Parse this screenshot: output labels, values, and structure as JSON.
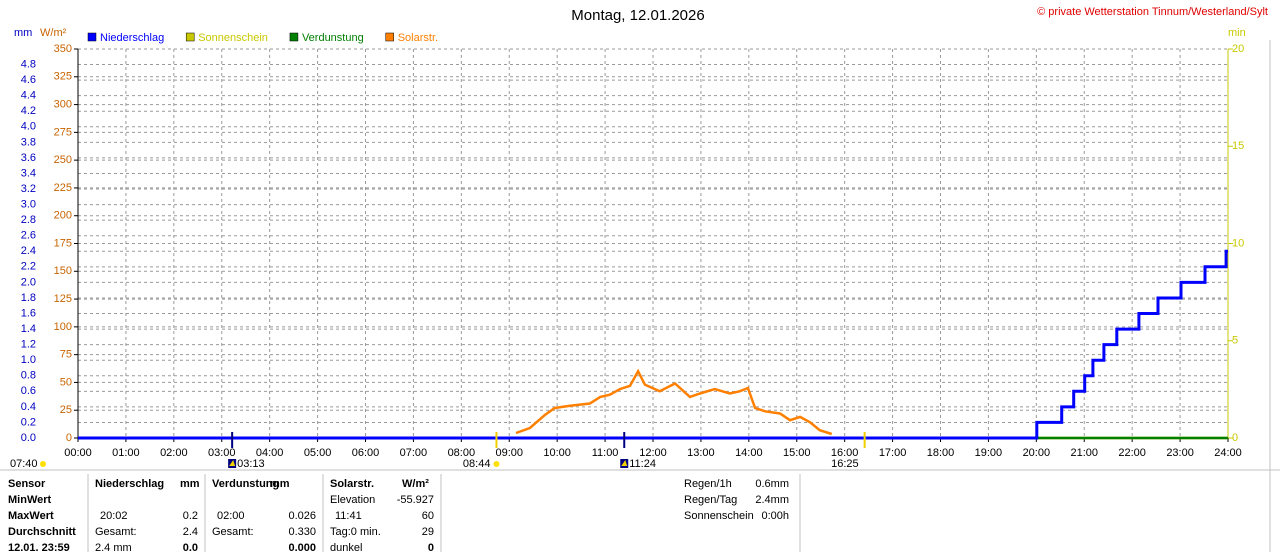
{
  "chart_data": {
    "type": "line",
    "title": "Montag, 12.01.2026",
    "copyright": "© private Wetterstation Tinnum/Westerland/Sylt",
    "ylabel": "W/m²",
    "y3label": "mm",
    "y2label": "min",
    "xlim": [
      0,
      24
    ],
    "xticks": [
      {
        "value": 0,
        "label": "00:00"
      },
      {
        "value": 1,
        "label": "01:00"
      },
      {
        "value": 2,
        "label": "02:00"
      },
      {
        "value": 3,
        "label": "03:00"
      },
      {
        "value": 4,
        "label": "04:00"
      },
      {
        "value": 5,
        "label": "05:00"
      },
      {
        "value": 6,
        "label": "06:00"
      },
      {
        "value": 7,
        "label": "07:00"
      },
      {
        "value": 8,
        "label": "08:00"
      },
      {
        "value": 9,
        "label": "09:00"
      },
      {
        "value": 10,
        "label": "10:00"
      },
      {
        "value": 11,
        "label": "11:00"
      },
      {
        "value": 12,
        "label": "12:00"
      },
      {
        "value": 13,
        "label": "13:00"
      },
      {
        "value": 14,
        "label": "14:00"
      },
      {
        "value": 15,
        "label": "15:00"
      },
      {
        "value": 16,
        "label": "16:00"
      },
      {
        "value": 17,
        "label": "17:00"
      },
      {
        "value": 18,
        "label": "18:00"
      },
      {
        "value": 19,
        "label": "19:00"
      },
      {
        "value": 20,
        "label": "20:00"
      },
      {
        "value": 21,
        "label": "21:00"
      },
      {
        "value": 22,
        "label": "22:00"
      },
      {
        "value": 23,
        "label": "23:00"
      },
      {
        "value": 24,
        "label": "24:00"
      }
    ],
    "ylim": [
      0,
      350
    ],
    "yticks": [
      0,
      25,
      50,
      75,
      100,
      125,
      150,
      175,
      200,
      225,
      250,
      275,
      300,
      325,
      350
    ],
    "y3lim": [
      0,
      5
    ],
    "y3ticks": [
      {
        "value": 0,
        "label": "0.0"
      },
      0.2,
      0.4,
      0.6,
      0.8,
      {
        "value": 1,
        "label": "1.0"
      },
      1.2,
      1.4,
      1.6,
      1.8,
      {
        "value": 2,
        "label": "2.0"
      },
      2.2,
      2.4,
      2.6,
      2.8,
      {
        "value": 3,
        "label": "3.0"
      },
      3.2,
      3.4,
      3.6,
      3.8,
      {
        "value": 4,
        "label": "4.0"
      },
      4.2,
      4.4,
      4.6,
      4.8
    ],
    "y2lim": [
      0,
      20
    ],
    "y2ticks": [
      0,
      5,
      10,
      15,
      20
    ],
    "grid": true,
    "series": [
      {
        "name": "Niederschlag",
        "color": "#0000ff",
        "axis": "y3",
        "x": [
          0,
          20.01,
          20.01,
          20.53,
          20.53,
          20.78,
          20.78,
          21.01,
          21.01,
          21.18,
          21.18,
          21.41,
          21.41,
          21.68,
          21.68,
          22.14,
          22.14,
          22.54,
          22.54,
          23.02,
          23.02,
          23.52,
          23.52,
          23.96,
          23.96,
          24
        ],
        "values": [
          0,
          0,
          0.2,
          0.2,
          0.4,
          0.4,
          0.6,
          0.6,
          0.8,
          0.8,
          1.0,
          1.0,
          1.2,
          1.2,
          1.4,
          1.4,
          1.6,
          1.6,
          1.8,
          1.8,
          2.0,
          2.0,
          2.2,
          2.2,
          2.4,
          2.4
        ]
      },
      {
        "name": "Sonnenschein",
        "color": "#c8c800",
        "axis": "y2",
        "x": [
          0,
          24
        ],
        "values": [
          0,
          0
        ]
      },
      {
        "name": "Verdunstung",
        "color": "#008000",
        "axis": "y3",
        "x": [
          0,
          24
        ],
        "values": [
          0,
          0
        ]
      },
      {
        "name": "Solarstr.",
        "color": "#ff8000",
        "axis": "y",
        "x": [
          9.14,
          9.43,
          9.75,
          9.95,
          10.27,
          10.68,
          10.9,
          11.1,
          11.31,
          11.52,
          11.69,
          11.83,
          12.14,
          12.46,
          12.77,
          12.98,
          13.29,
          13.6,
          13.81,
          13.98,
          14.13,
          14.34,
          14.65,
          14.86,
          15.07,
          15.28,
          15.48,
          15.73
        ],
        "values": [
          4.5,
          9,
          21,
          27,
          29,
          31,
          37,
          39,
          44,
          47,
          60,
          48,
          42,
          49,
          37,
          40,
          44,
          40,
          42,
          45,
          27,
          24,
          22,
          16,
          19,
          14,
          7,
          3.6
        ]
      }
    ],
    "sun_label": "07:40",
    "sun_marks": [
      {
        "value": 8.733,
        "label": "08:44"
      },
      {
        "value": 16.417,
        "label": "16:25"
      }
    ],
    "moon_marks": [
      {
        "value": 3.217,
        "label": "03:13"
      },
      {
        "value": 11.4,
        "label": "11:24"
      }
    ]
  },
  "stats": {
    "row_labels": [
      "Sensor",
      "MinWert",
      "MaxWert",
      "Durchschnitt",
      "12.01. 23:59"
    ],
    "groups": [
      [
        [
          "Niederschlag",
          "mm"
        ],
        null,
        [
          "20:02",
          "0.2"
        ],
        [
          "Gesamt:",
          "2.4"
        ],
        [
          "2.4 mm",
          "0.0"
        ]
      ],
      [
        [
          "Verdunstung",
          "mm"
        ],
        null,
        [
          "02:00",
          "0.026"
        ],
        [
          "Gesamt:",
          "0.330"
        ],
        [
          null,
          "0.000"
        ]
      ],
      [
        [
          "Solarstr.",
          "W/m²"
        ],
        [
          "Elevation",
          "-55.927"
        ],
        [
          "11:41",
          "60"
        ],
        [
          "Tag:0 min.",
          "29"
        ],
        [
          "dunkel",
          "0"
        ]
      ]
    ],
    "summary": [
      [
        "Regen/1h",
        "0.6mm"
      ],
      [
        "Regen/Tag",
        "2.4mm"
      ],
      [
        "Sonnenschein",
        "0:00h"
      ]
    ]
  }
}
